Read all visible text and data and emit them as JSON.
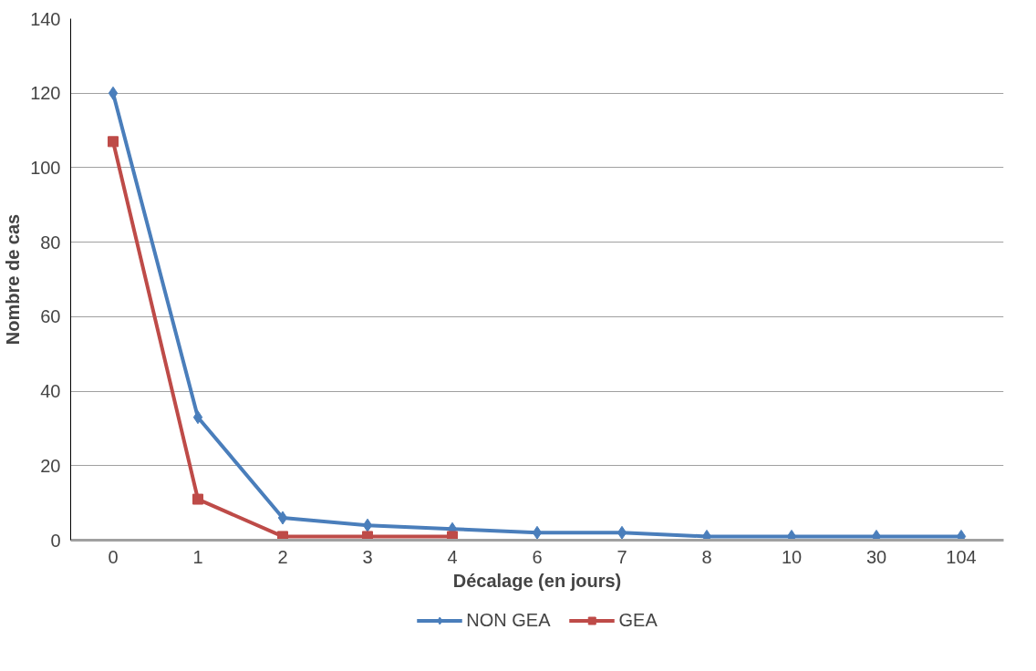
{
  "chart_data": {
    "type": "line",
    "xlabel": "Décalage (en jours)",
    "ylabel": "Nombre de cas",
    "categories": [
      "0",
      "1",
      "2",
      "3",
      "4",
      "6",
      "7",
      "8",
      "10",
      "30",
      "104"
    ],
    "ylim": [
      0,
      140
    ],
    "yticks": [
      0,
      20,
      40,
      60,
      80,
      100,
      120,
      140
    ],
    "grid": "y",
    "legend": "bottom",
    "line_style": "solid",
    "series": [
      {
        "name": "NON GEA",
        "color": "#4a7ebb",
        "marker": "diamond",
        "values": [
          120,
          33,
          6,
          4,
          3,
          2,
          2,
          1,
          1,
          1,
          1
        ]
      },
      {
        "name": "GEA",
        "color": "#be4b48",
        "marker": "square",
        "values": [
          107,
          11,
          1,
          1,
          1,
          null,
          null,
          null,
          null,
          null,
          null
        ]
      }
    ]
  }
}
